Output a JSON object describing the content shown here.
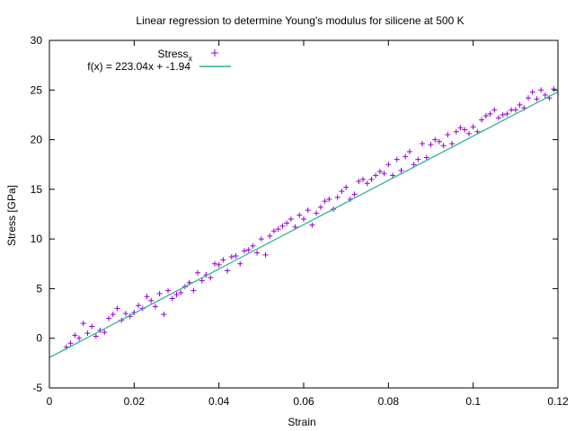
{
  "chart_data": {
    "type": "scatter",
    "title": "Linear regression to determine Young's modulus for silicene at 500 K",
    "xlabel": "Strain",
    "ylabel": "Stress [GPa]",
    "xlim": [
      0,
      0.12
    ],
    "ylim": [
      -5,
      30
    ],
    "x_ticks": [
      0,
      0.02,
      0.04,
      0.06,
      0.08,
      0.1,
      0.12
    ],
    "x_tick_labels": [
      "0",
      "0.02",
      "0.04",
      "0.06",
      "0.08",
      "0.1",
      "0.12"
    ],
    "y_ticks": [
      -5,
      0,
      5,
      10,
      15,
      20,
      25,
      30
    ],
    "y_tick_labels": [
      "-5",
      "0",
      "5",
      "10",
      "15",
      "20",
      "25",
      "30"
    ],
    "grid": false,
    "legend_position": "top-left",
    "series": [
      {
        "name": "Stress",
        "name_subscript": "x",
        "kind": "scatter",
        "marker": "+",
        "color": "#9400d3",
        "x": [
          0.004,
          0.005,
          0.006,
          0.007,
          0.008,
          0.009,
          0.01,
          0.011,
          0.012,
          0.013,
          0.014,
          0.015,
          0.016,
          0.017,
          0.018,
          0.019,
          0.02,
          0.021,
          0.022,
          0.023,
          0.024,
          0.025,
          0.026,
          0.027,
          0.028,
          0.029,
          0.03,
          0.031,
          0.032,
          0.033,
          0.034,
          0.035,
          0.036,
          0.037,
          0.038,
          0.039,
          0.04,
          0.041,
          0.042,
          0.043,
          0.044,
          0.045,
          0.046,
          0.047,
          0.048,
          0.049,
          0.05,
          0.051,
          0.052,
          0.053,
          0.054,
          0.055,
          0.056,
          0.057,
          0.058,
          0.059,
          0.06,
          0.061,
          0.062,
          0.063,
          0.064,
          0.065,
          0.066,
          0.067,
          0.068,
          0.069,
          0.07,
          0.071,
          0.072,
          0.073,
          0.074,
          0.075,
          0.076,
          0.077,
          0.078,
          0.079,
          0.08,
          0.081,
          0.082,
          0.083,
          0.084,
          0.085,
          0.086,
          0.087,
          0.088,
          0.089,
          0.09,
          0.091,
          0.092,
          0.093,
          0.094,
          0.095,
          0.096,
          0.097,
          0.098,
          0.099,
          0.1,
          0.101,
          0.102,
          0.103,
          0.104,
          0.105,
          0.106,
          0.107,
          0.108,
          0.109,
          0.11,
          0.111,
          0.112,
          0.113,
          0.114,
          0.115,
          0.116,
          0.117,
          0.118,
          0.119
        ],
        "y": [
          -0.9,
          -0.5,
          0.3,
          0.0,
          1.5,
          0.5,
          1.2,
          0.2,
          0.8,
          0.6,
          2.0,
          2.4,
          3.0,
          1.8,
          2.5,
          2.2,
          2.6,
          3.3,
          3.0,
          4.2,
          3.8,
          3.2,
          4.5,
          2.4,
          4.8,
          4.0,
          4.4,
          4.6,
          5.2,
          5.6,
          4.8,
          6.6,
          5.8,
          6.4,
          6.1,
          7.5,
          7.4,
          7.9,
          6.8,
          8.2,
          8.3,
          7.5,
          8.8,
          8.9,
          9.3,
          8.6,
          10.0,
          8.4,
          10.3,
          10.8,
          11.0,
          11.3,
          11.6,
          12.0,
          11.2,
          12.4,
          12.0,
          12.9,
          11.4,
          12.6,
          13.2,
          13.8,
          14.0,
          13.0,
          14.2,
          14.8,
          15.2,
          14.0,
          14.5,
          15.8,
          16.0,
          15.6,
          16.0,
          16.4,
          16.8,
          16.6,
          17.5,
          16.4,
          18.0,
          16.9,
          18.3,
          18.8,
          17.5,
          18.0,
          19.6,
          18.2,
          19.5,
          20.0,
          19.8,
          19.4,
          20.5,
          19.6,
          20.8,
          21.2,
          21.0,
          20.6,
          21.3,
          20.8,
          22.0,
          22.4,
          22.6,
          23.0,
          22.2,
          22.5,
          22.6,
          23.0,
          23.0,
          23.5,
          23.2,
          24.2,
          24.8,
          24.1,
          25.0,
          24.5,
          24.2,
          25.1
        ]
      },
      {
        "name": "f(x) = 223.04x + -1.94",
        "kind": "line",
        "color": "#20b090",
        "slope": 223.04,
        "intercept": -1.94
      }
    ]
  }
}
